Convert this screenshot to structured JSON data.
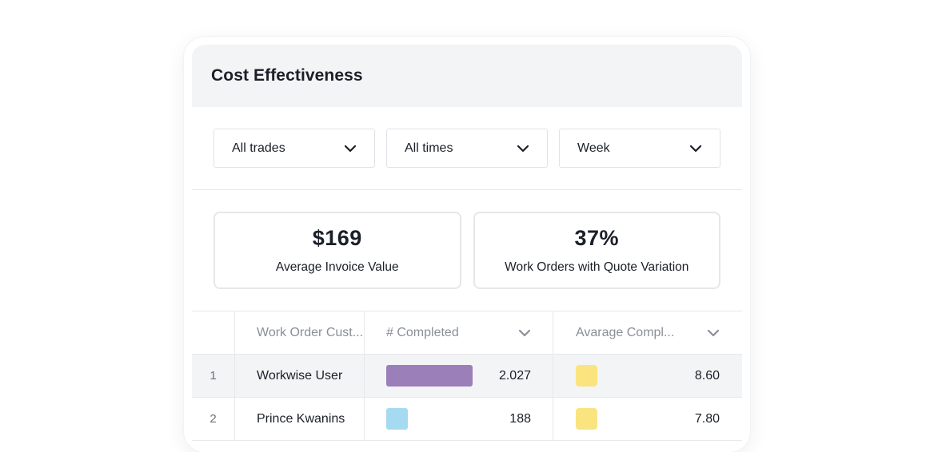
{
  "header": {
    "title": "Cost Effectiveness"
  },
  "filters": [
    {
      "value": "All trades",
      "icon": "chevron-down-icon"
    },
    {
      "value": "All times",
      "icon": "chevron-down-icon"
    },
    {
      "value": "Week",
      "icon": "chevron-down-icon"
    }
  ],
  "stats": [
    {
      "value": "$169",
      "label": "Average Invoice Value"
    },
    {
      "value": "37%",
      "label": "Work Orders with Quote Variation"
    }
  ],
  "table": {
    "columns": {
      "name": "Work Order Cust...",
      "completed": "# Completed",
      "average": "Avarage Compl..."
    },
    "max_completed": 2.027,
    "rows": [
      {
        "index": "1",
        "name": "Workwise User",
        "completed": "2.027",
        "completed_value": 2.027,
        "bar_color": "#9b7fb8",
        "average": "8.60",
        "swatch_color": "#fae480"
      },
      {
        "index": "2",
        "name": "Prince Kwanins",
        "completed": "188",
        "completed_value": 0.188,
        "bar_color": "#a6daf0",
        "average": "7.80",
        "swatch_color": "#fae480"
      }
    ]
  }
}
